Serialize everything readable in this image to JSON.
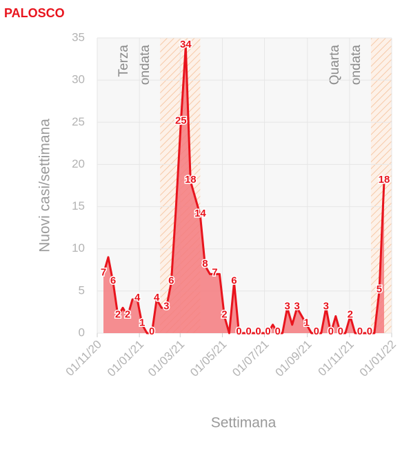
{
  "chart_data": {
    "type": "area",
    "title": "PALOSCO",
    "x_label": "Settimana",
    "y_label": "Nuovi casi/settimana",
    "color": "#e8141d",
    "fill": "#f47a7e",
    "grid": true,
    "xlim": [
      "2020-11-01",
      "2022-01-01"
    ],
    "xticks": [
      {
        "value": "2020-11-01",
        "label": "01/11/20"
      },
      {
        "value": "2021-01-01",
        "label": "01/01/21"
      },
      {
        "value": "2021-03-01",
        "label": "01/03/21"
      },
      {
        "value": "2021-05-01",
        "label": "01/05/21"
      },
      {
        "value": "2021-07-01",
        "label": "01/07/21"
      },
      {
        "value": "2021-09-01",
        "label": "01/09/21"
      },
      {
        "value": "2021-11-01",
        "label": "01/11/21"
      },
      {
        "value": "2022-01-01",
        "label": "01/01/22"
      }
    ],
    "ylim": [
      0,
      35
    ],
    "yticks": [
      0,
      5,
      10,
      15,
      20,
      25,
      30,
      35
    ],
    "regions": [
      {
        "start": "2021-01-31",
        "end": "2021-03-30",
        "label": [
          "Terza",
          "ondata"
        ]
      },
      {
        "start": "2021-12-02",
        "end": "2022-01-01",
        "label": [
          "Quarta",
          "ondata"
        ]
      }
    ],
    "x": [
      "2020-11-10",
      "2020-11-17",
      "2020-11-24",
      "2020-12-01",
      "2020-12-08",
      "2020-12-15",
      "2020-12-22",
      "2020-12-29",
      "2021-01-05",
      "2021-01-12",
      "2021-01-19",
      "2021-01-26",
      "2021-02-02",
      "2021-02-09",
      "2021-02-16",
      "2021-02-23",
      "2021-03-02",
      "2021-03-09",
      "2021-03-16",
      "2021-03-23",
      "2021-03-30",
      "2021-04-06",
      "2021-04-13",
      "2021-04-20",
      "2021-04-27",
      "2021-05-04",
      "2021-05-11",
      "2021-05-18",
      "2021-05-25",
      "2021-06-01",
      "2021-06-08",
      "2021-06-15",
      "2021-06-22",
      "2021-06-29",
      "2021-07-06",
      "2021-07-13",
      "2021-07-20",
      "2021-07-27",
      "2021-08-03",
      "2021-08-10",
      "2021-08-17",
      "2021-08-24",
      "2021-08-31",
      "2021-09-07",
      "2021-09-14",
      "2021-09-21",
      "2021-09-28",
      "2021-10-05",
      "2021-10-12",
      "2021-10-19",
      "2021-10-26",
      "2021-11-02",
      "2021-11-09",
      "2021-11-16",
      "2021-11-23",
      "2021-11-30",
      "2021-12-07",
      "2021-12-14",
      "2021-12-21"
    ],
    "values": [
      7,
      9,
      6,
      2,
      3,
      2,
      4,
      4,
      1,
      0,
      0,
      4,
      3,
      3,
      6,
      15,
      25,
      34,
      18,
      16,
      14,
      8,
      7,
      7,
      7,
      2,
      0,
      6,
      0,
      0,
      0,
      0,
      0,
      0,
      0,
      1,
      0,
      0,
      3,
      1,
      3,
      2,
      1,
      0,
      0,
      0,
      3,
      0,
      2,
      0,
      0,
      2,
      0,
      0,
      0,
      0,
      0,
      5,
      18
    ],
    "value_labels": [
      "7",
      null,
      "6",
      "2",
      null,
      "2",
      null,
      "4",
      "1",
      null,
      "0",
      "4",
      null,
      "3",
      "6",
      null,
      "25",
      "34",
      "18",
      null,
      "14",
      "8",
      null,
      "7",
      null,
      "2",
      null,
      "6",
      "0",
      null,
      "0",
      null,
      "0",
      null,
      "0",
      null,
      "0",
      null,
      "3",
      null,
      "3",
      null,
      "1",
      null,
      "0",
      null,
      "3",
      "0",
      null,
      "0",
      null,
      "2",
      null,
      "0",
      null,
      "0",
      null,
      "5",
      "18"
    ]
  }
}
